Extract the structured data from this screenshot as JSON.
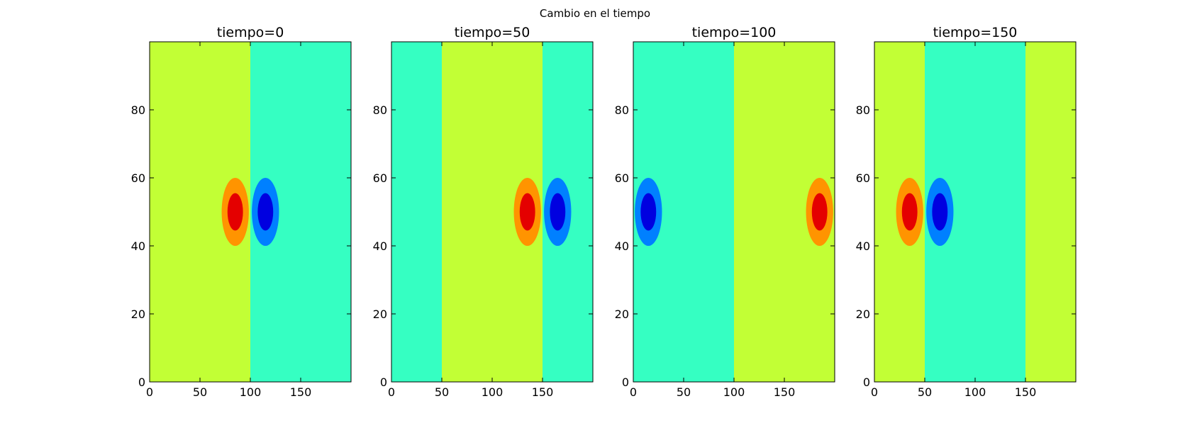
{
  "figure": {
    "title": "Cambio en el tiempo"
  },
  "chart_data": [
    {
      "type": "heatmap",
      "title": "tiempo=0",
      "xlim": [
        0,
        200
      ],
      "ylim": [
        0,
        100
      ],
      "x_ticks": [
        0,
        50,
        100,
        150
      ],
      "y_ticks": [
        0,
        20,
        40,
        60,
        80
      ],
      "bands": [
        {
          "x0": 0,
          "x1": 100,
          "color": "#c2ff35"
        },
        {
          "x0": 100,
          "x1": 200,
          "color": "#35ffc2"
        }
      ],
      "blobs": [
        {
          "cx": 85,
          "cy": 50,
          "sign": "positive"
        },
        {
          "cx": 115,
          "cy": 50,
          "sign": "negative"
        }
      ]
    },
    {
      "type": "heatmap",
      "title": "tiempo=50",
      "xlim": [
        0,
        200
      ],
      "ylim": [
        0,
        100
      ],
      "x_ticks": [
        0,
        50,
        100,
        150
      ],
      "y_ticks": [
        0,
        20,
        40,
        60,
        80
      ],
      "bands": [
        {
          "x0": 0,
          "x1": 50,
          "color": "#35ffc2"
        },
        {
          "x0": 50,
          "x1": 150,
          "color": "#c2ff35"
        },
        {
          "x0": 150,
          "x1": 200,
          "color": "#35ffc2"
        }
      ],
      "blobs": [
        {
          "cx": 135,
          "cy": 50,
          "sign": "positive"
        },
        {
          "cx": 165,
          "cy": 50,
          "sign": "negative"
        }
      ]
    },
    {
      "type": "heatmap",
      "title": "tiempo=100",
      "xlim": [
        0,
        200
      ],
      "ylim": [
        0,
        100
      ],
      "x_ticks": [
        0,
        50,
        100,
        150
      ],
      "y_ticks": [
        0,
        20,
        40,
        60,
        80
      ],
      "bands": [
        {
          "x0": 0,
          "x1": 100,
          "color": "#35ffc2"
        },
        {
          "x0": 100,
          "x1": 200,
          "color": "#c2ff35"
        }
      ],
      "blobs": [
        {
          "cx": 185,
          "cy": 50,
          "sign": "positive"
        },
        {
          "cx": 15,
          "cy": 50,
          "sign": "negative"
        }
      ]
    },
    {
      "type": "heatmap",
      "title": "tiempo=150",
      "xlim": [
        0,
        200
      ],
      "ylim": [
        0,
        100
      ],
      "x_ticks": [
        0,
        50,
        100,
        150
      ],
      "y_ticks": [
        0,
        20,
        40,
        60,
        80
      ],
      "bands": [
        {
          "x0": 0,
          "x1": 50,
          "color": "#c2ff35"
        },
        {
          "x0": 50,
          "x1": 150,
          "color": "#35ffc2"
        },
        {
          "x0": 150,
          "x1": 200,
          "color": "#c2ff35"
        }
      ],
      "blobs": [
        {
          "cx": 35,
          "cy": 50,
          "sign": "positive"
        },
        {
          "cx": 65,
          "cy": 50,
          "sign": "negative"
        }
      ]
    }
  ],
  "colors": {
    "positive_outer": "#ff9400",
    "positive_inner": "#e40000",
    "negative_outer": "#0080ff",
    "negative_inner": "#0000e0"
  }
}
